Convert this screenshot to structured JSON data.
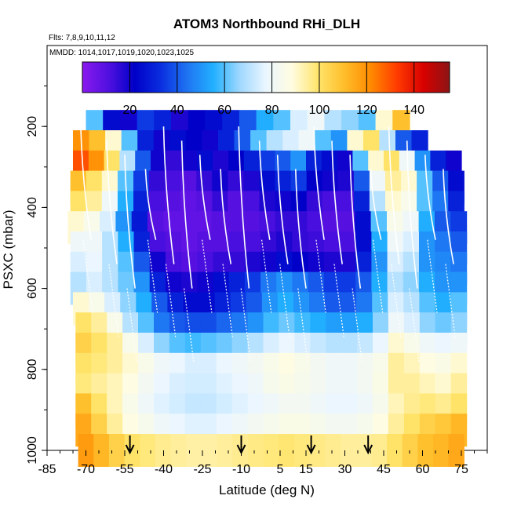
{
  "chart_data": {
    "type": "heatmap",
    "title": "ATOM3 Northbound RHi_DLH",
    "flights_label": "Flts: 7,8,9,10,11,12",
    "mmdd_label": "MMDD: 1014,1017,1019,1020,1023,1025",
    "xlabel": "Latitude (deg N)",
    "ylabel": "PSXC (mbar)",
    "xlim": [
      -85,
      85
    ],
    "ylim": [
      1000,
      0
    ],
    "x_ticks": [
      "-85",
      "-70",
      "-55",
      "-40",
      "-25",
      "-10",
      "5",
      "15",
      "30",
      "45",
      "60",
      "75"
    ],
    "x_tick_values": [
      -85,
      -70,
      -55,
      -40,
      -25,
      -10,
      5,
      15,
      30,
      45,
      60,
      75
    ],
    "y_ticks": [
      "200",
      "400",
      "600",
      "800",
      "1000"
    ],
    "y_tick_values": [
      200,
      400,
      600,
      800,
      1000
    ],
    "colorbar": {
      "range": [
        0,
        155
      ],
      "ticks": [
        "20",
        "40",
        "60",
        "80",
        "100",
        "120",
        "140"
      ],
      "tick_values": [
        20,
        40,
        60,
        80,
        100,
        120,
        140
      ],
      "colors": [
        "#8a1aee",
        "#5010e0",
        "#0000c8",
        "#0a2fe0",
        "#1f74f2",
        "#22b0ff",
        "#9fd8ff",
        "#eaf6ff",
        "#fffce0",
        "#ffe46a",
        "#ffbd2a",
        "#ff8a00",
        "#ff3b00",
        "#d80000",
        "#8c1414"
      ]
    },
    "arrow_latitudes": [
      -53,
      -10,
      17,
      39
    ],
    "layers": [
      {
        "p": 200,
        "x0": -70,
        "x1": 55,
        "v": [
          60,
          25,
          20,
          35,
          30,
          18,
          22,
          25,
          30,
          40,
          55,
          60,
          75,
          80,
          70,
          65,
          60,
          90,
          110
        ]
      },
      {
        "p": 250,
        "x0": -75,
        "x1": 62,
        "v": [
          120,
          110,
          90,
          60,
          30,
          20,
          25,
          22,
          20,
          30,
          40,
          60,
          70,
          75,
          80,
          60,
          50,
          90,
          100,
          70,
          40,
          30
        ]
      },
      {
        "p": 300,
        "x0": -75,
        "x1": 75,
        "v": [
          130,
          120,
          100,
          70,
          40,
          20,
          15,
          20,
          25,
          18,
          22,
          30,
          35,
          40,
          50,
          30,
          25,
          20,
          60,
          90,
          100,
          80,
          50,
          30,
          20
        ]
      },
      {
        "p": 350,
        "x0": -76,
        "x1": 76,
        "v": [
          110,
          100,
          90,
          60,
          35,
          15,
          12,
          10,
          15,
          20,
          15,
          18,
          25,
          30,
          35,
          22,
          20,
          18,
          40,
          80,
          95,
          90,
          60,
          40,
          25
        ]
      },
      {
        "p": 400,
        "x0": -76,
        "x1": 76,
        "v": [
          100,
          95,
          80,
          55,
          30,
          12,
          10,
          8,
          10,
          15,
          10,
          12,
          18,
          20,
          22,
          15,
          12,
          12,
          30,
          70,
          90,
          85,
          60,
          45,
          30
        ]
      },
      {
        "p": 450,
        "x0": -77,
        "x1": 77,
        "v": [
          90,
          85,
          75,
          50,
          28,
          10,
          8,
          8,
          8,
          10,
          10,
          10,
          12,
          15,
          15,
          12,
          10,
          10,
          25,
          60,
          85,
          80,
          55,
          40,
          35
        ]
      },
      {
        "p": 500,
        "x0": -76,
        "x1": 77,
        "v": [
          80,
          80,
          70,
          55,
          30,
          12,
          10,
          8,
          10,
          10,
          12,
          12,
          15,
          18,
          15,
          14,
          12,
          12,
          25,
          55,
          80,
          75,
          50,
          45,
          40
        ]
      },
      {
        "p": 550,
        "x0": -76,
        "x1": 77,
        "v": [
          75,
          78,
          70,
          60,
          40,
          20,
          12,
          10,
          12,
          15,
          15,
          18,
          20,
          25,
          22,
          20,
          18,
          18,
          30,
          50,
          75,
          70,
          50,
          48,
          45
        ]
      },
      {
        "p": 600,
        "x0": -76,
        "x1": 77,
        "v": [
          70,
          75,
          70,
          62,
          50,
          30,
          20,
          18,
          20,
          25,
          30,
          35,
          45,
          50,
          45,
          40,
          35,
          35,
          40,
          55,
          70,
          65,
          55,
          50,
          50
        ]
      },
      {
        "p": 650,
        "x0": -75,
        "x1": 77,
        "v": [
          90,
          85,
          75,
          65,
          55,
          40,
          30,
          25,
          25,
          30,
          35,
          40,
          50,
          55,
          50,
          45,
          40,
          40,
          45,
          60,
          75,
          70,
          60,
          55,
          60
        ]
      },
      {
        "p": 700,
        "x0": -74,
        "x1": 77,
        "v": [
          100,
          95,
          85,
          70,
          60,
          45,
          40,
          38,
          38,
          42,
          45,
          50,
          58,
          62,
          58,
          55,
          52,
          52,
          55,
          65,
          80,
          75,
          65,
          62,
          65
        ]
      },
      {
        "p": 750,
        "x0": -74,
        "x1": 77,
        "v": [
          105,
          100,
          95,
          85,
          75,
          65,
          60,
          58,
          60,
          62,
          65,
          70,
          75,
          78,
          75,
          72,
          70,
          70,
          72,
          78,
          90,
          85,
          80,
          78,
          80
        ]
      },
      {
        "p": 800,
        "x0": -74,
        "x1": 77,
        "v": [
          100,
          98,
          95,
          90,
          85,
          80,
          78,
          75,
          75,
          78,
          80,
          82,
          85,
          88,
          85,
          82,
          80,
          80,
          82,
          85,
          95,
          92,
          88,
          86,
          90
        ]
      },
      {
        "p": 850,
        "x0": -74,
        "x1": 77,
        "v": [
          98,
          95,
          92,
          88,
          82,
          78,
          75,
          74,
          74,
          76,
          78,
          80,
          84,
          86,
          84,
          82,
          80,
          80,
          82,
          86,
          95,
          95,
          92,
          90,
          95
        ]
      },
      {
        "p": 900,
        "x0": -74,
        "x1": 77,
        "v": [
          110,
          100,
          92,
          85,
          80,
          76,
          74,
          72,
          72,
          74,
          76,
          78,
          80,
          82,
          82,
          80,
          78,
          78,
          80,
          84,
          92,
          96,
          98,
          96,
          100
        ]
      },
      {
        "p": 950,
        "x0": -74,
        "x1": 77,
        "v": [
          115,
          105,
          95,
          88,
          84,
          80,
          78,
          76,
          76,
          78,
          80,
          82,
          84,
          86,
          86,
          84,
          82,
          82,
          84,
          88,
          95,
          100,
          105,
          108,
          112
        ]
      },
      {
        "p": 1000,
        "x0": -73,
        "x1": 76,
        "v": [
          118,
          112,
          105,
          100,
          98,
          96,
          95,
          94,
          94,
          95,
          96,
          97,
          98,
          99,
          98,
          97,
          96,
          95,
          95,
          96,
          100,
          105,
          110,
          112,
          115
        ]
      }
    ]
  }
}
